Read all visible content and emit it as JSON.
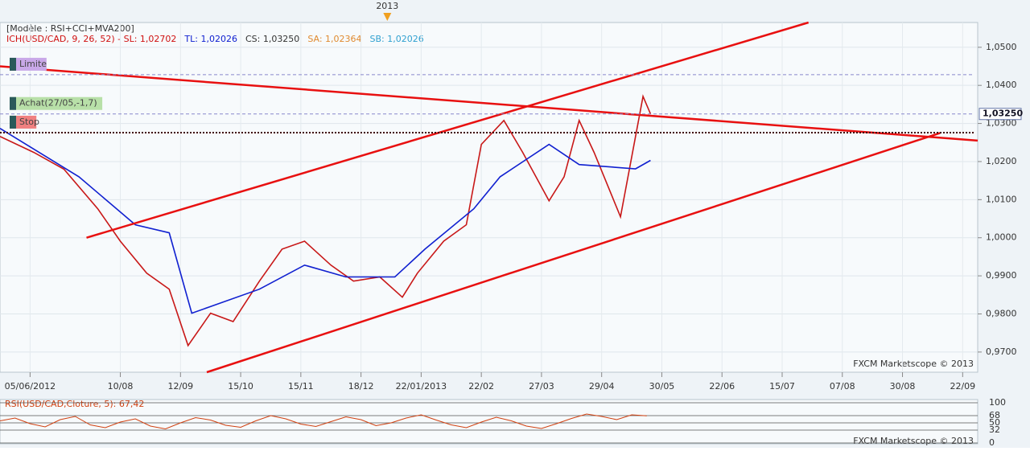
{
  "header": {
    "model": "[Modèle : RSI+CCI+MVA200]",
    "indicator_parts": [
      {
        "text": "ICH(USD/CAD, 9, 26, 52) -  SL: 1,02702",
        "color": "#d01010"
      },
      {
        "text": "TL: 1,02026",
        "color": "#1020d0"
      },
      {
        "text": "CS: 1,03250",
        "color": "#333333"
      },
      {
        "text": "SA: 1,02364",
        "color": "#e08a30"
      },
      {
        "text": "SB: 1,02026",
        "color": "#30a0d0"
      }
    ],
    "watermark_main": "FXCM Marketscope © 2013",
    "watermark_rsi": "FXCM Marketscope © 2013"
  },
  "chart_data": {
    "type": "line",
    "xlim": [
      0,
      260
    ],
    "ylim": [
      0.9647,
      1.0565
    ],
    "xticks": [
      {
        "value": 8,
        "label": "05/06/2012"
      },
      {
        "value": 32,
        "label": "10/08"
      },
      {
        "value": 48,
        "label": "12/09"
      },
      {
        "value": 64,
        "label": "15/10"
      },
      {
        "value": 80,
        "label": "15/11"
      },
      {
        "value": 96,
        "label": "18/12"
      },
      {
        "value": 112,
        "label": "22/01/2013"
      },
      {
        "value": 128,
        "label": "22/02"
      },
      {
        "value": 144,
        "label": "27/03"
      },
      {
        "value": 160,
        "label": "29/04"
      },
      {
        "value": 176,
        "label": "30/05"
      },
      {
        "value": 192,
        "label": "22/06"
      },
      {
        "value": 208,
        "label": "15/07"
      },
      {
        "value": 224,
        "label": "07/08"
      },
      {
        "value": 240,
        "label": "30/08"
      },
      {
        "value": 256,
        "label": "22/09"
      }
    ],
    "yticks": [
      {
        "value": 0.97,
        "label": "0,9700"
      },
      {
        "value": 0.98,
        "label": "0,9800"
      },
      {
        "value": 0.99,
        "label": "0,9900"
      },
      {
        "value": 1.0,
        "label": "1,0000"
      },
      {
        "value": 1.01,
        "label": "1,0100"
      },
      {
        "value": 1.02,
        "label": "1,0200"
      },
      {
        "value": 1.03,
        "label": "1,0300"
      },
      {
        "value": 1.04,
        "label": "1,0400"
      },
      {
        "value": 1.05,
        "label": "1,0500"
      }
    ],
    "period_marker": {
      "label": "2013",
      "x": 103
    },
    "current_price": {
      "value": 1.0325,
      "label": "1,03250"
    },
    "series": [
      {
        "color": "#c81818",
        "x": [
          0,
          9,
          17,
          26,
          32,
          39,
          45,
          50,
          56,
          62,
          69,
          75,
          81,
          88,
          94,
          101,
          107,
          111,
          118,
          124,
          128,
          134,
          139,
          146,
          150,
          154,
          158,
          165,
          169,
          171,
          173
        ],
        "values": [
          1.0266,
          1.0224,
          1.018,
          1.0076,
          0.9991,
          0.9907,
          0.9865,
          0.9717,
          0.9802,
          0.978,
          0.9886,
          0.997,
          0.9991,
          0.9928,
          0.9886,
          0.9897,
          0.9844,
          0.9907,
          0.9991,
          1.0034,
          1.0245,
          1.0308,
          1.0224,
          1.0097,
          1.016,
          1.0308,
          1.0224,
          1.0055,
          1.0266,
          1.0371,
          1.0325
        ]
      },
      {
        "color": "#1020d0",
        "x": [
          0,
          21,
          36,
          45,
          51,
          69,
          81,
          92,
          105,
          113,
          126,
          133,
          146,
          154,
          169,
          173
        ],
        "values": [
          1.0287,
          1.016,
          1.0034,
          1.0013,
          0.9802,
          0.9865,
          0.9928,
          0.9897,
          0.9897,
          0.997,
          1.0076,
          1.016,
          1.0245,
          1.0192,
          1.0181,
          1.0203
        ]
      },
      {
        "color": "#e81010",
        "x": [
          23,
          215
        ],
        "values": [
          1.0,
          1.0565
        ]
      },
      {
        "color": "#e81010",
        "x": [
          55,
          250
        ],
        "values": [
          0.9647,
          1.0275
        ]
      },
      {
        "color": "#e81010",
        "x": [
          0,
          260
        ],
        "values": [
          1.045,
          1.0255
        ]
      }
    ],
    "annotations": [
      {
        "text": "Limite",
        "value": 1.0428,
        "color": "#c9a8e8"
      },
      {
        "text": "Achat(27/05,-1,7)",
        "value": 1.0325,
        "color": "#b8e0a8"
      },
      {
        "text": "Stop",
        "value": 1.0276,
        "color": "#f08080"
      }
    ],
    "rsi": {
      "label": "RSI(USD/CAD,Cloture, 5): 67,42",
      "color": "#d04010",
      "ylim": [
        0,
        100
      ],
      "yticks": [
        100,
        68,
        50,
        32,
        0
      ],
      "x": [
        0,
        4,
        8,
        12,
        16,
        20,
        24,
        28,
        32,
        36,
        40,
        44,
        48,
        52,
        56,
        60,
        64,
        68,
        72,
        76,
        80,
        84,
        88,
        92,
        96,
        100,
        104,
        108,
        112,
        116,
        120,
        124,
        128,
        132,
        136,
        140,
        144,
        148,
        152,
        156,
        160,
        164,
        168,
        172
      ],
      "values": [
        55,
        62,
        48,
        40,
        58,
        66,
        45,
        38,
        52,
        60,
        42,
        35,
        50,
        63,
        57,
        44,
        39,
        55,
        68,
        60,
        47,
        41,
        53,
        65,
        58,
        43,
        50,
        62,
        70,
        57,
        45,
        38,
        52,
        64,
        55,
        42,
        36,
        48,
        61,
        72,
        66,
        58,
        70,
        67.42
      ]
    }
  }
}
